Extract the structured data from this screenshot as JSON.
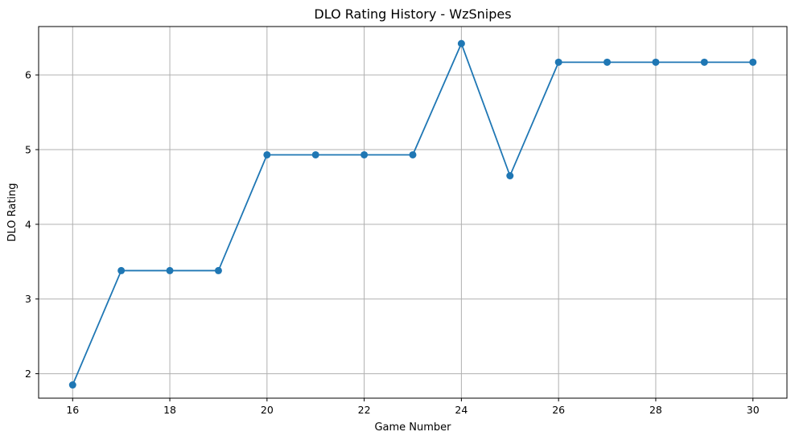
{
  "chart_data": {
    "type": "line",
    "title": "DLO Rating History - WzSnipes",
    "xlabel": "Game Number",
    "ylabel": "DLO Rating",
    "x": [
      16,
      17,
      18,
      19,
      20,
      21,
      22,
      23,
      24,
      25,
      26,
      27,
      28,
      29,
      30
    ],
    "series": [
      {
        "values": [
          1.85,
          3.38,
          3.38,
          3.38,
          4.93,
          4.93,
          4.93,
          4.93,
          6.42,
          4.65,
          6.17,
          6.17,
          6.17,
          6.17,
          6.17
        ]
      }
    ],
    "xticks": [
      16,
      18,
      20,
      22,
      24,
      26,
      28,
      30
    ],
    "yticks": [
      2,
      3,
      4,
      5,
      6
    ],
    "xlim": [
      15.3,
      30.7
    ],
    "ylim": [
      1.6725,
      6.6475
    ],
    "grid": true,
    "marker": "circle",
    "line_color": "#1f77b4"
  }
}
